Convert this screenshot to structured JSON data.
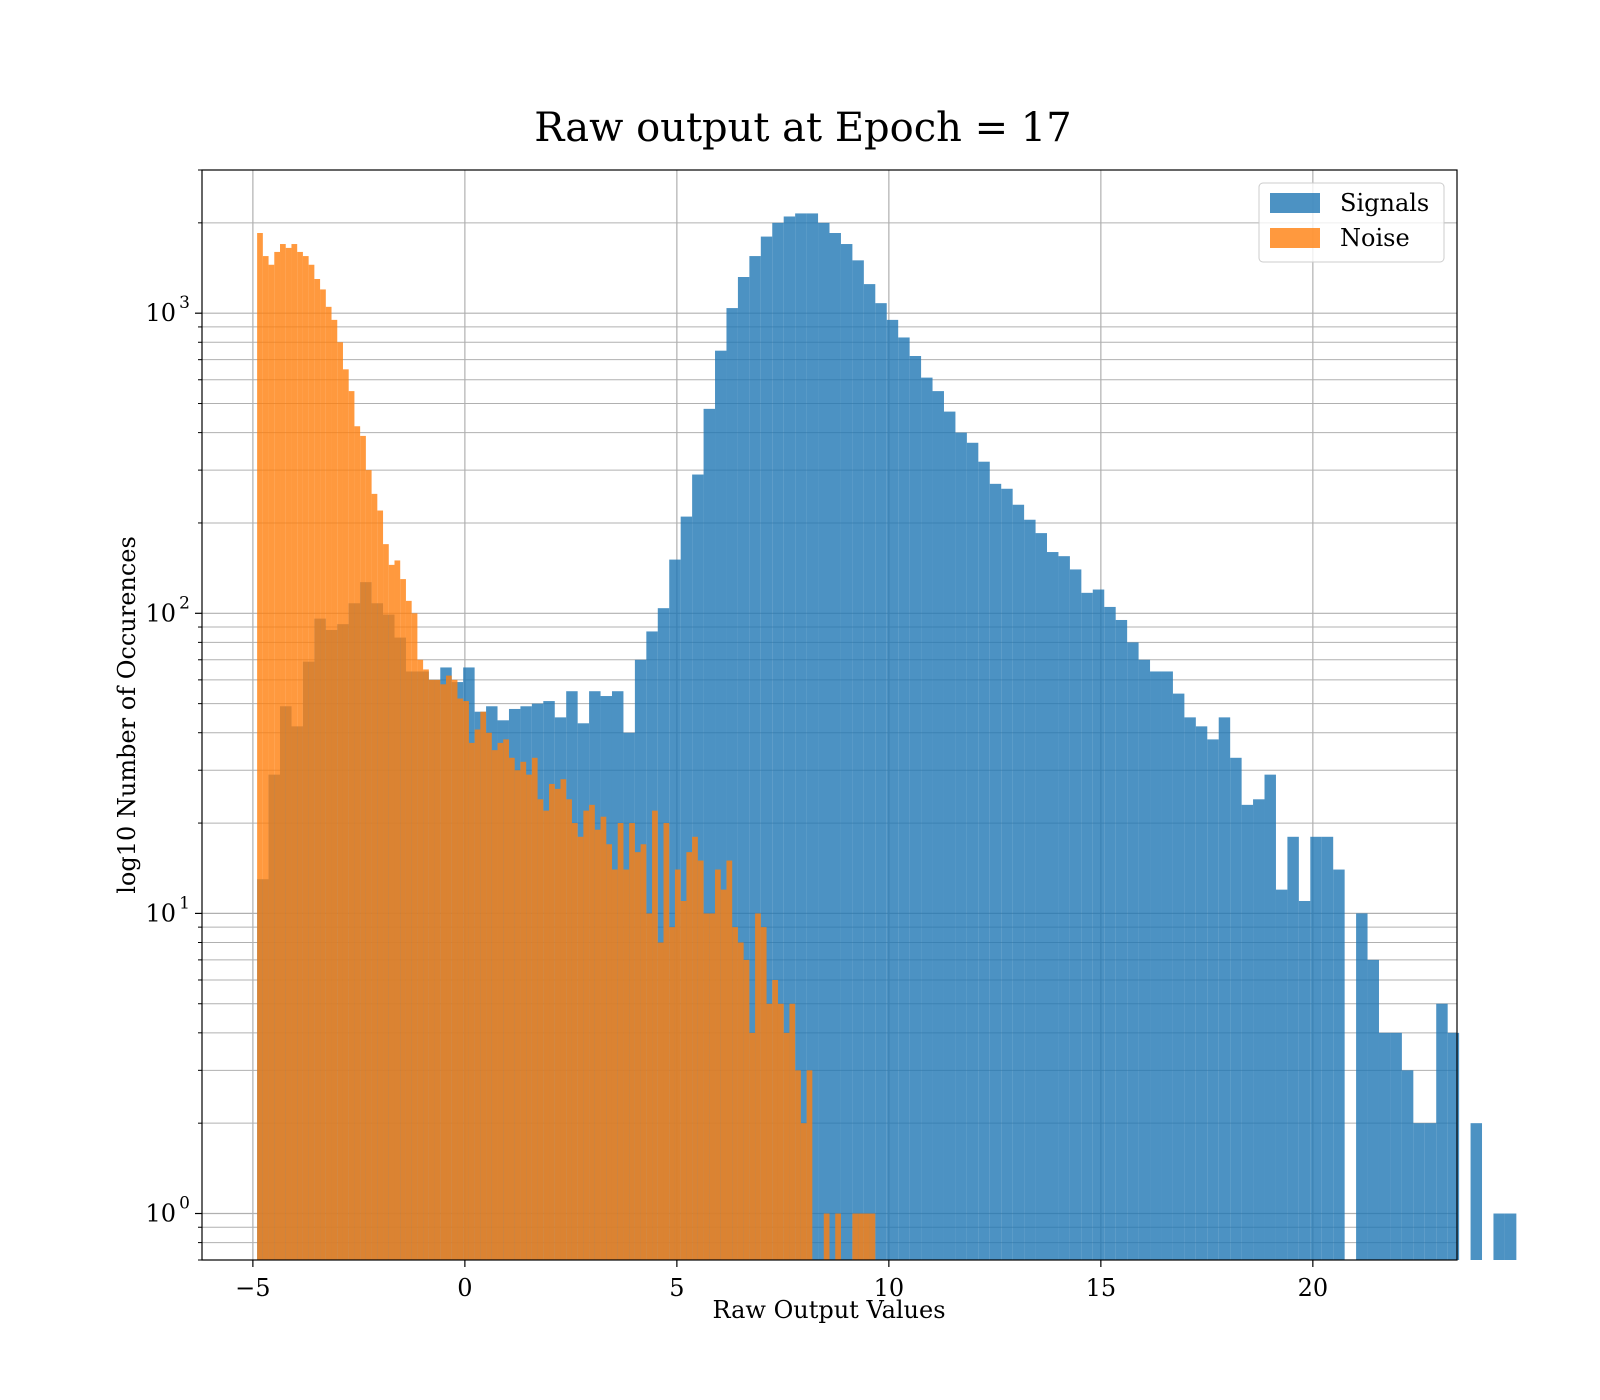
{
  "chart_data": {
    "type": "bar",
    "histogram": true,
    "title": "Raw output at Epoch = 17",
    "xlabel": "Raw Output Values",
    "ylabel": "log10 Number of Occurences",
    "xlim": [
      -6.2,
      23.4
    ],
    "ylim": [
      0.7,
      3000
    ],
    "yscale": "log",
    "grid": "both-major-and-minor",
    "x_ticks": [
      -5,
      0,
      5,
      10,
      15,
      20
    ],
    "x_tick_labels": [
      "−5",
      "0",
      "5",
      "10",
      "15",
      "20"
    ],
    "y_ticks": [
      1,
      10,
      100,
      1000
    ],
    "y_tick_labels": [
      "10",
      "10",
      "10",
      "10"
    ],
    "y_tick_exponents": [
      "0",
      "1",
      "2",
      "3"
    ],
    "legend": {
      "position": "top-right",
      "entries": [
        "Signals",
        "Noise"
      ]
    },
    "series": [
      {
        "name": "Signals",
        "color": "#1f77b4",
        "alpha": 0.8,
        "x_start": -4.9,
        "bin_width": 0.27,
        "values": [
          13,
          29,
          49,
          42,
          69,
          96,
          88,
          92,
          108,
          127,
          108,
          99,
          83,
          64,
          64,
          60,
          66,
          59,
          66,
          47,
          49,
          44,
          48,
          49,
          50,
          51,
          45,
          55,
          43,
          55,
          53,
          55,
          40,
          70,
          87,
          104,
          151,
          210,
          290,
          480,
          750,
          1040,
          1320,
          1550,
          1800,
          2000,
          2100,
          2150,
          2150,
          2000,
          1850,
          1700,
          1500,
          1250,
          1080,
          950,
          830,
          720,
          610,
          550,
          470,
          400,
          370,
          320,
          270,
          260,
          230,
          205,
          185,
          160,
          155,
          140,
          117,
          120,
          105,
          95,
          80,
          70,
          64,
          64,
          54,
          45,
          42,
          38,
          45,
          33,
          23,
          24,
          29,
          12,
          18,
          11,
          18,
          18,
          14,
          0,
          10,
          7,
          4,
          4,
          3,
          2,
          2,
          5,
          4,
          0,
          2,
          0,
          1,
          1
        ]
      },
      {
        "name": "Noise",
        "color": "#ff7f0e",
        "alpha": 0.8,
        "x_start": -4.9,
        "bin_width": 0.135,
        "values": [
          1850,
          1550,
          1450,
          1600,
          1700,
          1650,
          1700,
          1600,
          1550,
          1450,
          1300,
          1200,
          1050,
          950,
          800,
          650,
          550,
          420,
          390,
          300,
          250,
          220,
          170,
          145,
          150,
          130,
          110,
          100,
          70,
          65,
          60,
          60,
          58,
          62,
          60,
          52,
          51,
          37,
          41,
          47,
          40,
          35,
          37,
          38,
          33,
          30,
          32,
          29,
          33,
          24,
          22,
          27,
          26,
          28,
          24,
          20,
          18,
          22,
          23,
          19,
          21,
          17,
          14,
          20,
          14,
          20,
          16,
          17,
          10,
          22,
          8,
          20,
          9,
          14,
          11,
          16,
          18,
          15,
          10,
          10,
          14,
          12,
          15,
          9,
          8,
          7,
          4,
          10,
          9,
          5,
          6,
          5,
          4,
          5,
          3,
          2,
          3,
          0,
          0,
          1,
          0,
          1,
          0,
          0,
          1,
          1,
          1,
          1,
          0
        ]
      }
    ]
  }
}
